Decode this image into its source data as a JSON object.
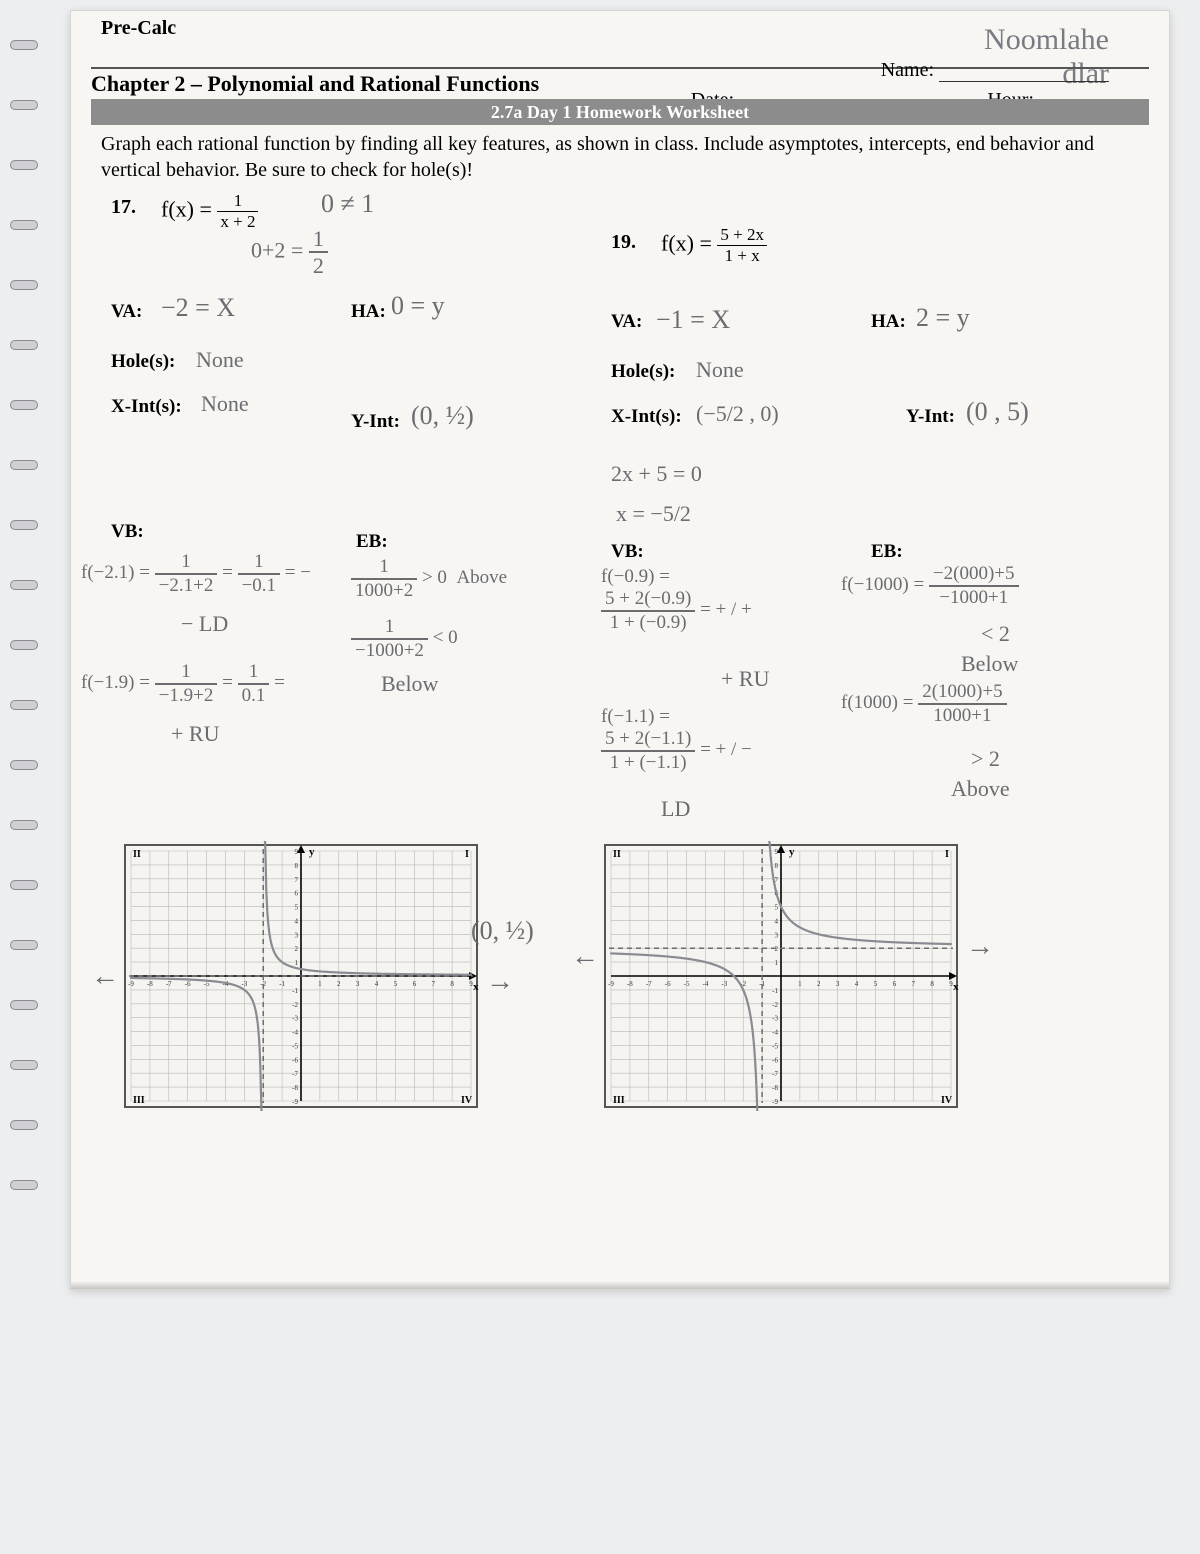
{
  "course": "Pre-Calc",
  "chapter_title": "Chapter 2 – Polynomial and Rational Functions",
  "worksheet_title": "2.7a Day 1 Homework Worksheet",
  "name_label": "Name:",
  "date_label": "Date:",
  "hour_label": "Hour:",
  "handwritten_name_line1": "Noomlahe",
  "handwritten_name_line2": "dlar",
  "instructions": "Graph each rational function by finding all key features, as shown in class. Include asymptotes, intercepts, end behavior and vertical behavior. Be sure to check for hole(s)!",
  "p17": {
    "number": "17.",
    "func_lhs": "f(x) =",
    "func_num": "1",
    "func_den": "x + 2",
    "check1": "0 ≠ 1",
    "check2_n": "0+2 =",
    "check2_res_n": "1",
    "check2_res_d": "2",
    "va_label": "VA:",
    "va": "−2 = X",
    "ha_label": "HA:",
    "ha": "0 = y",
    "holes_label": "Hole(s):",
    "holes": "None",
    "xint_label": "X-Int(s):",
    "xint": "None",
    "yint_label": "Y-Int:",
    "yint": "(0, ½)",
    "vb_label": "VB:",
    "vb_line1_lhs": "f(−2.1) =",
    "vb_line1_f1_n": "1",
    "vb_line1_f1_d": "−2.1+2",
    "vb_line1_f2_n": "1",
    "vb_line1_f2_d": "−0.1",
    "vb_line1_tail": "= −",
    "vb_line1_res": "− LD",
    "vb_line2_lhs": "f(−1.9) =",
    "vb_line2_f1_n": "1",
    "vb_line2_f1_d": "−1.9+2",
    "vb_line2_f2_n": "1",
    "vb_line2_f2_d": "0.1",
    "vb_line2_tail": "=",
    "vb_line2_res": "+ RU",
    "eb_label": "EB:",
    "eb1_n": "1",
    "eb1_d": "1000+2",
    "eb1_cmp": "> 0",
    "eb1_word": "Above",
    "eb2_n": "1",
    "eb2_d": "−1000+2",
    "eb2_cmp": "< 0",
    "eb2_word": "Below"
  },
  "p19": {
    "number": "19.",
    "func_lhs": "f(x) =",
    "func_num": "5 + 2x",
    "func_den": "1 + x",
    "va_label": "VA:",
    "va": "−1 = X",
    "ha_label": "HA:",
    "ha": "2 = y",
    "holes_label": "Hole(s):",
    "holes": "None",
    "xint_label": "X-Int(s):",
    "xint": "(−5/2 , 0)",
    "yint_label": "Y-Int:",
    "yint": "(0 , 5)",
    "solve1": "2x + 5 = 0",
    "solve2": "x = −5/2",
    "vb_label": "VB:",
    "vb1_lhs": "f(−0.9) =",
    "vb1_n": "5 + 2(−0.9)",
    "vb1_d": "1 + (−0.9)",
    "vb1_sign": "= + / +",
    "vb1_res": "+ RU",
    "vb2_lhs": "f(−1.1) =",
    "vb2_n": "5 + 2(−1.1)",
    "vb2_d": "1 + (−1.1)",
    "vb2_sign": "= + / −",
    "vb2_res": "LD",
    "eb_label": "EB:",
    "eb1_lhs": "f(−1000) =",
    "eb1_n": "−2(000)+5",
    "eb1_d": "−1000+1",
    "eb1_cmp": "< 2",
    "eb1_word": "Below",
    "eb2_lhs": "f(1000) =",
    "eb2_n": "2(1000)+5",
    "eb2_d": "1000+1",
    "eb2_cmp": "> 2",
    "eb2_word": "Above"
  },
  "grid": {
    "range": 9,
    "quadrants": [
      "II",
      "I",
      "III",
      "IV"
    ],
    "axis_label_x": "x",
    "axis_label_y": "y"
  },
  "graph17_point_label": "(0, ½)",
  "arrows_left": "←",
  "arrows_right": "→",
  "colors": {
    "paper": "#f7f6f3",
    "ink": "#222222",
    "bar": "#8c8c8c",
    "pencil": "#6b6b70",
    "grid_line": "#b8b8b8",
    "grid_border": "#555555",
    "curve": "#8a8a92"
  }
}
